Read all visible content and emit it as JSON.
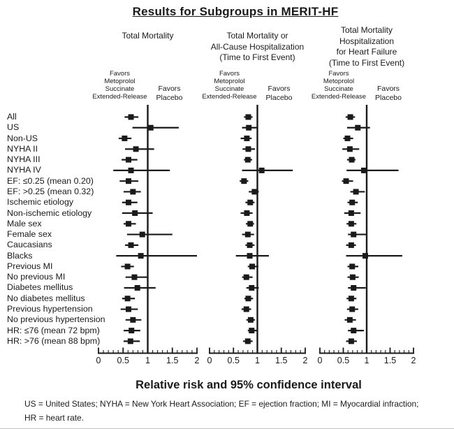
{
  "title": "Results for Subgroups in MERIT-HF",
  "axis_title": "Relative risk and 95% confidence interval",
  "footnote_line1": "US = United States; NYHA = New York Heart Association; EF = ejection fraction; MI = Myocardial infraction;",
  "footnote_line2": "HR = heart rate.",
  "favors_left_lines": [
    "Favors",
    "Metoprolol",
    "Succinate",
    "Extended-Release"
  ],
  "favors_right_lines": [
    "Favors",
    "Placebo"
  ],
  "colors": {
    "ink": "#1a1a1a",
    "background": "#ffffff"
  },
  "chart_data": {
    "type": "scatter",
    "variant": "forest-plot",
    "xlim": [
      0,
      2
    ],
    "x_ticks": [
      0,
      0.5,
      1,
      1.5,
      2
    ],
    "minor_tick_step": 0.1,
    "reference_line": 1,
    "grid": false,
    "values_format": [
      "relative_risk",
      "ci_low",
      "ci_high"
    ],
    "subgroups": [
      "All",
      "US",
      "Non-US",
      "NYHA II",
      "NYHA III",
      "NYHA IV",
      "EF: ≤0.25 (mean 0.20)",
      "EF: >0.25 (mean 0.32)",
      "Ischemic etiology",
      "Non-ischemic etiology",
      "Male sex",
      "Female sex",
      "Caucasians",
      "Blacks",
      "Previous MI",
      "No previous MI",
      "Diabetes mellitus",
      "No diabetes mellitus",
      "Previous hypertension",
      "No previous hypertension",
      "HR: ≤76 (mean 72 bpm)",
      "HR: >76 (mean 88 bpm)"
    ],
    "panels": [
      {
        "title_lines": [
          "Total Mortality"
        ],
        "values": [
          [
            0.66,
            0.53,
            0.81
          ],
          [
            1.06,
            0.69,
            1.63
          ],
          [
            0.53,
            0.41,
            0.67
          ],
          [
            0.76,
            0.54,
            1.13
          ],
          [
            0.61,
            0.47,
            0.79
          ],
          [
            0.66,
            0.3,
            1.45
          ],
          [
            0.61,
            0.43,
            0.81
          ],
          [
            0.7,
            0.51,
            0.86
          ],
          [
            0.61,
            0.48,
            0.79
          ],
          [
            0.74,
            0.48,
            1.1
          ],
          [
            0.61,
            0.51,
            0.76
          ],
          [
            0.89,
            0.58,
            1.5
          ],
          [
            0.66,
            0.54,
            0.81
          ],
          [
            0.86,
            0.36,
            2.0
          ],
          [
            0.59,
            0.46,
            0.72
          ],
          [
            0.73,
            0.55,
            1.0
          ],
          [
            0.79,
            0.52,
            1.16
          ],
          [
            0.59,
            0.48,
            0.74
          ],
          [
            0.61,
            0.45,
            0.8
          ],
          [
            0.7,
            0.55,
            0.87
          ],
          [
            0.67,
            0.51,
            0.85
          ],
          [
            0.65,
            0.51,
            0.84
          ]
        ]
      },
      {
        "title_lines": [
          "Total Mortality or",
          "All-Cause Hospitalization",
          "(Time to First Event)"
        ],
        "values": [
          [
            0.81,
            0.72,
            0.9
          ],
          [
            0.82,
            0.68,
            1.0
          ],
          [
            0.78,
            0.65,
            0.88
          ],
          [
            0.81,
            0.69,
            0.95
          ],
          [
            0.8,
            0.72,
            0.89
          ],
          [
            1.09,
            0.68,
            1.74
          ],
          [
            0.72,
            0.63,
            0.81
          ],
          [
            0.94,
            0.82,
            1.03
          ],
          [
            0.85,
            0.75,
            0.94
          ],
          [
            0.78,
            0.65,
            0.9
          ],
          [
            0.85,
            0.76,
            0.93
          ],
          [
            0.8,
            0.68,
            0.93
          ],
          [
            0.84,
            0.75,
            0.94
          ],
          [
            0.84,
            0.55,
            1.24
          ],
          [
            0.89,
            0.8,
            1.02
          ],
          [
            0.77,
            0.68,
            0.9
          ],
          [
            0.88,
            0.77,
            1.03
          ],
          [
            0.81,
            0.73,
            0.91
          ],
          [
            0.77,
            0.67,
            0.87
          ],
          [
            0.86,
            0.77,
            0.95
          ],
          [
            0.88,
            0.8,
            1.0
          ],
          [
            0.8,
            0.7,
            0.9
          ]
        ]
      },
      {
        "title_lines": [
          "Total Mortality",
          "Hospitalization",
          "for Heart Failure",
          "(Time to First Event)"
        ],
        "values": [
          [
            0.65,
            0.55,
            0.75
          ],
          [
            0.81,
            0.58,
            1.07
          ],
          [
            0.59,
            0.5,
            0.71
          ],
          [
            0.64,
            0.48,
            0.84
          ],
          [
            0.68,
            0.58,
            0.76
          ],
          [
            0.94,
            0.57,
            1.68
          ],
          [
            0.56,
            0.47,
            0.71
          ],
          [
            0.77,
            0.65,
            0.96
          ],
          [
            0.69,
            0.59,
            0.81
          ],
          [
            0.67,
            0.52,
            0.87
          ],
          [
            0.67,
            0.57,
            0.78
          ],
          [
            0.72,
            0.6,
            1.0
          ],
          [
            0.67,
            0.56,
            0.77
          ],
          [
            0.97,
            0.56,
            1.76
          ],
          [
            0.69,
            0.59,
            0.82
          ],
          [
            0.7,
            0.59,
            0.83
          ],
          [
            0.72,
            0.6,
            0.98
          ],
          [
            0.67,
            0.57,
            0.78
          ],
          [
            0.69,
            0.58,
            0.82
          ],
          [
            0.64,
            0.53,
            0.77
          ],
          [
            0.72,
            0.6,
            0.94
          ],
          [
            0.67,
            0.56,
            0.79
          ]
        ]
      }
    ]
  }
}
